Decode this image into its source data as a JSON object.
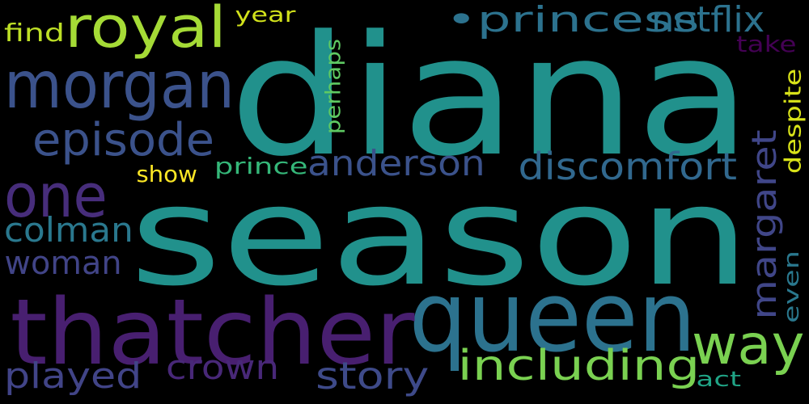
{
  "words": [
    {
      "key": "diana",
      "text": "diana",
      "color": "#21918c"
    },
    {
      "key": "season",
      "text": "season",
      "color": "#21918c"
    },
    {
      "key": "queen",
      "text": "queen",
      "color": "#2c728e"
    },
    {
      "key": "thatcher",
      "text": "thatcher",
      "color": "#481f70"
    },
    {
      "key": "morgan",
      "text": "morgan",
      "color": "#3b528b"
    },
    {
      "key": "royal",
      "text": "royal",
      "color": "#a5db36"
    },
    {
      "key": "one",
      "text": "one",
      "color": "#472d7b"
    },
    {
      "key": "episode",
      "text": "episode",
      "color": "#3b528b"
    },
    {
      "key": "princess",
      "text": "•princess",
      "color": "#2c728e"
    },
    {
      "key": "netflix",
      "text": "netflix",
      "color": "#2c728e"
    },
    {
      "key": "way",
      "text": "way",
      "color": "#7ad151"
    },
    {
      "key": "including",
      "text": "including",
      "color": "#7ad151"
    },
    {
      "key": "discomfort",
      "text": "discomfort",
      "color": "#31688e"
    },
    {
      "key": "anderson",
      "text": "anderson",
      "color": "#3b528b"
    },
    {
      "key": "colman",
      "text": "colman",
      "color": "#2a788e"
    },
    {
      "key": "woman",
      "text": "woman",
      "color": "#414487"
    },
    {
      "key": "played",
      "text": "played",
      "color": "#414487"
    },
    {
      "key": "crown",
      "text": "crown",
      "color": "#482878"
    },
    {
      "key": "story",
      "text": "story",
      "color": "#3e4a89"
    },
    {
      "key": "margaret",
      "text": "margaret",
      "color": "#404688"
    },
    {
      "key": "find",
      "text": "find",
      "color": "#bddf26"
    },
    {
      "key": "year",
      "text": "year",
      "color": "#d2e21b"
    },
    {
      "key": "take",
      "text": "take",
      "color": "#440154"
    },
    {
      "key": "perhaps",
      "text": "perhaps",
      "color": "#5ec962"
    },
    {
      "key": "show",
      "text": "show",
      "color": "#fde725"
    },
    {
      "key": "prince",
      "text": "prince",
      "color": "#35b779"
    },
    {
      "key": "despite",
      "text": "despite",
      "color": "#d8e219"
    },
    {
      "key": "even",
      "text": "even",
      "color": "#2a788e"
    },
    {
      "key": "act",
      "text": "act",
      "color": "#20a486"
    }
  ]
}
